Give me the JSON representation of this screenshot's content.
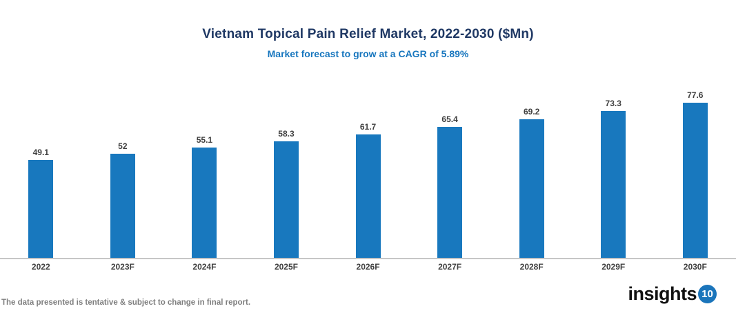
{
  "header": {
    "title": "Vietnam Topical Pain Relief Market, 2022-2030 ($Mn)",
    "subtitle": "Market forecast to grow at a CAGR of 5.89%",
    "title_color": "#1F3864",
    "subtitle_color": "#1776BE"
  },
  "chart_data": {
    "type": "bar",
    "title": "Vietnam Topical Pain Relief Market, 2022-2030 ($Mn)",
    "subtitle": "Market forecast to grow at a CAGR of 5.89%",
    "categories": [
      "2022",
      "2023F",
      "2024F",
      "2025F",
      "2026F",
      "2027F",
      "2028F",
      "2029F",
      "2030F"
    ],
    "values": [
      49.1,
      52,
      55.1,
      58.3,
      61.7,
      65.4,
      69.2,
      73.3,
      77.6
    ],
    "value_labels": [
      "49.1",
      "52",
      "55.1",
      "58.3",
      "61.7",
      "65.4",
      "69.2",
      "73.3",
      "77.6"
    ],
    "xlabel": "",
    "ylabel": "",
    "ylim": [
      0,
      80
    ],
    "grid": false,
    "legend": null,
    "bar_color": "#1878BE",
    "axis_line_color": "#C6C6C6",
    "label_color": "#404040"
  },
  "footer": {
    "disclaimer": "The data presented is tentative & subject to change in final report.",
    "logo": {
      "text": "insights",
      "badge": "10",
      "badge_color": "#1B75BB"
    }
  }
}
